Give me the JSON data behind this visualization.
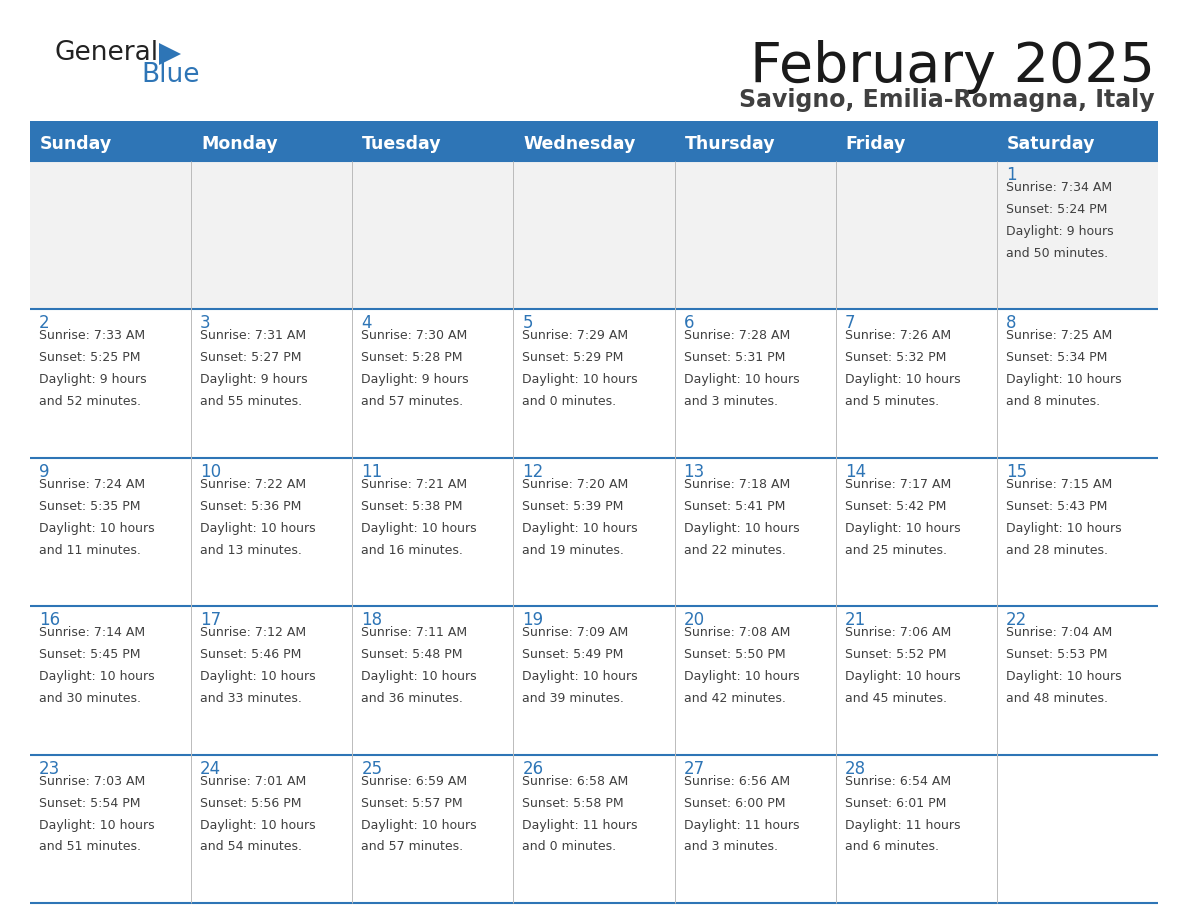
{
  "title": "February 2025",
  "subtitle": "Savigno, Emilia-Romagna, Italy",
  "days_of_week": [
    "Sunday",
    "Monday",
    "Tuesday",
    "Wednesday",
    "Thursday",
    "Friday",
    "Saturday"
  ],
  "header_bg": "#2E75B6",
  "header_text": "#FFFFFF",
  "cell_bg_white": "#FFFFFF",
  "cell_bg_gray": "#F2F2F2",
  "divider_color": "#2E75B6",
  "day_number_color": "#2E75B6",
  "text_color": "#404040",
  "logo_general_color": "#1a1a1a",
  "logo_blue_color": "#2E75B6",
  "calendar_data": [
    [
      {
        "day": null,
        "sunrise": null,
        "sunset": null,
        "daylight": null
      },
      {
        "day": null,
        "sunrise": null,
        "sunset": null,
        "daylight": null
      },
      {
        "day": null,
        "sunrise": null,
        "sunset": null,
        "daylight": null
      },
      {
        "day": null,
        "sunrise": null,
        "sunset": null,
        "daylight": null
      },
      {
        "day": null,
        "sunrise": null,
        "sunset": null,
        "daylight": null
      },
      {
        "day": null,
        "sunrise": null,
        "sunset": null,
        "daylight": null
      },
      {
        "day": 1,
        "sunrise": "7:34 AM",
        "sunset": "5:24 PM",
        "daylight": "9 hours",
        "daylight2": "and 50 minutes."
      }
    ],
    [
      {
        "day": 2,
        "sunrise": "7:33 AM",
        "sunset": "5:25 PM",
        "daylight": "9 hours",
        "daylight2": "and 52 minutes."
      },
      {
        "day": 3,
        "sunrise": "7:31 AM",
        "sunset": "5:27 PM",
        "daylight": "9 hours",
        "daylight2": "and 55 minutes."
      },
      {
        "day": 4,
        "sunrise": "7:30 AM",
        "sunset": "5:28 PM",
        "daylight": "9 hours",
        "daylight2": "and 57 minutes."
      },
      {
        "day": 5,
        "sunrise": "7:29 AM",
        "sunset": "5:29 PM",
        "daylight": "10 hours",
        "daylight2": "and 0 minutes."
      },
      {
        "day": 6,
        "sunrise": "7:28 AM",
        "sunset": "5:31 PM",
        "daylight": "10 hours",
        "daylight2": "and 3 minutes."
      },
      {
        "day": 7,
        "sunrise": "7:26 AM",
        "sunset": "5:32 PM",
        "daylight": "10 hours",
        "daylight2": "and 5 minutes."
      },
      {
        "day": 8,
        "sunrise": "7:25 AM",
        "sunset": "5:34 PM",
        "daylight": "10 hours",
        "daylight2": "and 8 minutes."
      }
    ],
    [
      {
        "day": 9,
        "sunrise": "7:24 AM",
        "sunset": "5:35 PM",
        "daylight": "10 hours",
        "daylight2": "and 11 minutes."
      },
      {
        "day": 10,
        "sunrise": "7:22 AM",
        "sunset": "5:36 PM",
        "daylight": "10 hours",
        "daylight2": "and 13 minutes."
      },
      {
        "day": 11,
        "sunrise": "7:21 AM",
        "sunset": "5:38 PM",
        "daylight": "10 hours",
        "daylight2": "and 16 minutes."
      },
      {
        "day": 12,
        "sunrise": "7:20 AM",
        "sunset": "5:39 PM",
        "daylight": "10 hours",
        "daylight2": "and 19 minutes."
      },
      {
        "day": 13,
        "sunrise": "7:18 AM",
        "sunset": "5:41 PM",
        "daylight": "10 hours",
        "daylight2": "and 22 minutes."
      },
      {
        "day": 14,
        "sunrise": "7:17 AM",
        "sunset": "5:42 PM",
        "daylight": "10 hours",
        "daylight2": "and 25 minutes."
      },
      {
        "day": 15,
        "sunrise": "7:15 AM",
        "sunset": "5:43 PM",
        "daylight": "10 hours",
        "daylight2": "and 28 minutes."
      }
    ],
    [
      {
        "day": 16,
        "sunrise": "7:14 AM",
        "sunset": "5:45 PM",
        "daylight": "10 hours",
        "daylight2": "and 30 minutes."
      },
      {
        "day": 17,
        "sunrise": "7:12 AM",
        "sunset": "5:46 PM",
        "daylight": "10 hours",
        "daylight2": "and 33 minutes."
      },
      {
        "day": 18,
        "sunrise": "7:11 AM",
        "sunset": "5:48 PM",
        "daylight": "10 hours",
        "daylight2": "and 36 minutes."
      },
      {
        "day": 19,
        "sunrise": "7:09 AM",
        "sunset": "5:49 PM",
        "daylight": "10 hours",
        "daylight2": "and 39 minutes."
      },
      {
        "day": 20,
        "sunrise": "7:08 AM",
        "sunset": "5:50 PM",
        "daylight": "10 hours",
        "daylight2": "and 42 minutes."
      },
      {
        "day": 21,
        "sunrise": "7:06 AM",
        "sunset": "5:52 PM",
        "daylight": "10 hours",
        "daylight2": "and 45 minutes."
      },
      {
        "day": 22,
        "sunrise": "7:04 AM",
        "sunset": "5:53 PM",
        "daylight": "10 hours",
        "daylight2": "and 48 minutes."
      }
    ],
    [
      {
        "day": 23,
        "sunrise": "7:03 AM",
        "sunset": "5:54 PM",
        "daylight": "10 hours",
        "daylight2": "and 51 minutes."
      },
      {
        "day": 24,
        "sunrise": "7:01 AM",
        "sunset": "5:56 PM",
        "daylight": "10 hours",
        "daylight2": "and 54 minutes."
      },
      {
        "day": 25,
        "sunrise": "6:59 AM",
        "sunset": "5:57 PM",
        "daylight": "10 hours",
        "daylight2": "and 57 minutes."
      },
      {
        "day": 26,
        "sunrise": "6:58 AM",
        "sunset": "5:58 PM",
        "daylight": "11 hours",
        "daylight2": "and 0 minutes."
      },
      {
        "day": 27,
        "sunrise": "6:56 AM",
        "sunset": "6:00 PM",
        "daylight": "11 hours",
        "daylight2": "and 3 minutes."
      },
      {
        "day": 28,
        "sunrise": "6:54 AM",
        "sunset": "6:01 PM",
        "daylight": "11 hours",
        "daylight2": "and 6 minutes."
      },
      {
        "day": null,
        "sunrise": null,
        "sunset": null,
        "daylight": null,
        "daylight2": null
      }
    ]
  ],
  "figsize": [
    11.88,
    9.18
  ],
  "dpi": 100
}
